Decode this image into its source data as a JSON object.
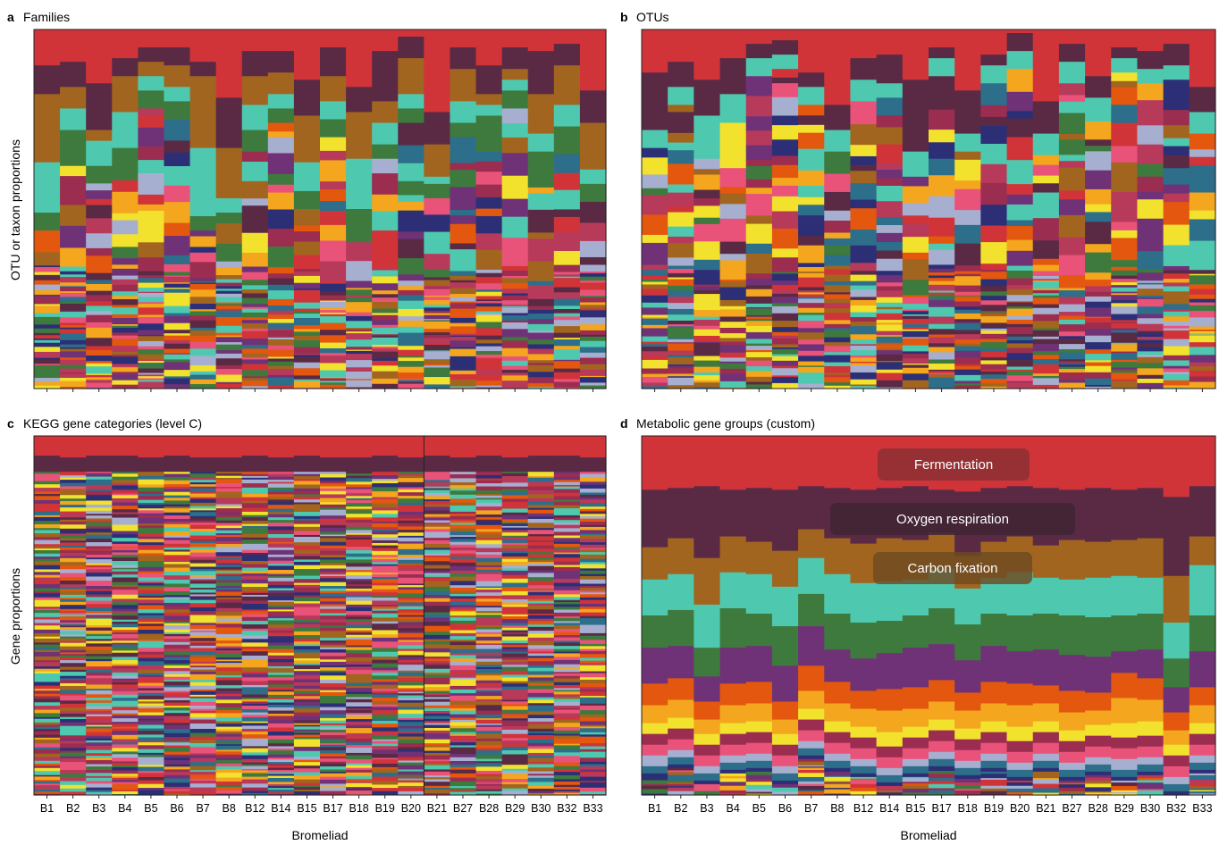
{
  "figure": {
    "y_label_top": "OTU or taxon proportions",
    "y_label_bottom": "Gene proportions",
    "x_label": "Bromeliad"
  },
  "palette": [
    "#d13438",
    "#5a2a45",
    "#a2651f",
    "#4ec9b0",
    "#3e7a3e",
    "#6f3277",
    "#f2e22e",
    "#f3a61e",
    "#e4570f",
    "#9b2d50",
    "#2d6e8a",
    "#e9537a",
    "#a7afd0",
    "#2c2f76",
    "#b83a5a"
  ],
  "chart_data": [
    {
      "panel": "a",
      "title": "Families",
      "type": "bar",
      "stacked": true,
      "normalized": true,
      "categories": [
        "B1",
        "B2",
        "B3",
        "B4",
        "B5",
        "B6",
        "B7",
        "B8",
        "B12",
        "B14",
        "B15",
        "B17",
        "B18",
        "B19",
        "B20",
        "B21",
        "B27",
        "B28",
        "B29",
        "B30",
        "B32",
        "B33"
      ],
      "ylim": [
        0,
        1
      ],
      "tick_labels_shown": false,
      "series_named": [
        {
          "color": "#d13438",
          "values": [
            0.1,
            0.09,
            0.15,
            0.08,
            0.05,
            0.05,
            0.09,
            0.19,
            0.06,
            0.06,
            0.14,
            0.05,
            0.16,
            0.06,
            0.02,
            0.23,
            0.05,
            0.1,
            0.05,
            0.06,
            0.04,
            0.17
          ]
        },
        {
          "color": "#5a2a45",
          "values": [
            0.08,
            0.07,
            0.13,
            0.05,
            0.04,
            0.05,
            0.04,
            0.14,
            0.07,
            0.06,
            0.1,
            0.08,
            0.07,
            0.14,
            0.06,
            0.09,
            0.06,
            0.08,
            0.06,
            0.12,
            0.06,
            0.09
          ]
        },
        {
          "color": "#a2651f",
          "values": [
            0.19,
            0.06,
            0.03,
            0.1,
            0.04,
            0.06,
            0.2,
            0.14,
            0.08,
            0.06,
            0.13,
            0.07,
            0.13,
            0.06,
            0.1,
            0.09,
            0.09,
            0.03,
            0.03,
            0.11,
            0.11,
            0.13
          ]
        },
        {
          "color": "#4ec9b0",
          "values": [
            0.14,
            0.06,
            0.07,
            0.1,
            0.04,
            0.04,
            0.19,
            0.04,
            0.07,
            0.04,
            0.08,
            0.05,
            0.14,
            0.06,
            0.04,
            0.02,
            0.06,
            0.03,
            0.03,
            0.05,
            0.06,
            0.04
          ]
        },
        {
          "color": "#3e7a3e",
          "values": [
            0.05,
            0.1,
            0.03,
            0.09,
            0.05,
            0.05,
            0.04,
            0.03,
            0.06,
            0.04,
            0.05,
            0.05,
            0.06,
            0.04,
            0.04,
            0.04,
            0.04,
            0.1,
            0.05,
            0.1,
            0.06,
            0.05
          ]
        }
      ],
      "remainder_note": "many additional minor families in thin colored bands to total 1.0"
    },
    {
      "panel": "b",
      "title": "OTUs",
      "type": "bar",
      "stacked": true,
      "normalized": true,
      "categories": [
        "B1",
        "B2",
        "B3",
        "B4",
        "B5",
        "B6",
        "B7",
        "B8",
        "B12",
        "B14",
        "B15",
        "B17",
        "B18",
        "B19",
        "B20",
        "B21",
        "B27",
        "B28",
        "B29",
        "B30",
        "B32",
        "B33"
      ],
      "ylim": [
        0,
        1
      ],
      "tick_labels_shown": false,
      "series_named": [
        {
          "color": "#d13438",
          "values": [
            0.12,
            0.09,
            0.14,
            0.08,
            0.04,
            0.03,
            0.12,
            0.21,
            0.08,
            0.07,
            0.14,
            0.05,
            0.17,
            0.07,
            0.01,
            0.2,
            0.04,
            0.13,
            0.05,
            0.06,
            0.04,
            0.16
          ]
        },
        {
          "color": "#5a2a45",
          "values": [
            0.16,
            0.07,
            0.1,
            0.1,
            0.04,
            0.04,
            0.04,
            0.07,
            0.06,
            0.08,
            0.2,
            0.03,
            0.12,
            0.03,
            0.05,
            0.09,
            0.05,
            0.06,
            0.03,
            0.05,
            0.06,
            0.07
          ]
        },
        {
          "color": "#4ec9b0",
          "values": [
            0.05,
            0.05,
            0.12,
            0.08,
            0.05,
            0.04,
            0.05,
            0.06,
            0.06,
            0.04,
            0.07,
            0.05,
            0.05,
            0.05,
            0.05,
            0.06,
            0.06,
            0.05,
            0.04,
            0.04,
            0.04,
            0.06
          ]
        }
      ],
      "remainder_note": "many additional minor OTUs in thin colored bands to total 1.0"
    },
    {
      "panel": "c",
      "title": "KEGG gene categories (level C)",
      "type": "bar",
      "stacked": true,
      "normalized": true,
      "categories": [
        "B1",
        "B2",
        "B3",
        "B4",
        "B5",
        "B6",
        "B7",
        "B8",
        "B12",
        "B14",
        "B15",
        "B17",
        "B18",
        "B19",
        "B20",
        "B21",
        "B27",
        "B28",
        "B29",
        "B30",
        "B32",
        "B33"
      ],
      "ylim": [
        0,
        1
      ],
      "series_named": [
        {
          "color": "#d13438",
          "values": [
            0.055,
            0.06,
            0.055,
            0.055,
            0.06,
            0.055,
            0.06,
            0.06,
            0.055,
            0.06,
            0.055,
            0.06,
            0.06,
            0.055,
            0.06,
            0.055,
            0.06,
            0.055,
            0.06,
            0.055,
            0.055,
            0.06
          ]
        },
        {
          "color": "#5a2a45",
          "values": [
            0.045,
            0.04,
            0.045,
            0.045,
            0.04,
            0.045,
            0.04,
            0.04,
            0.045,
            0.04,
            0.045,
            0.04,
            0.045,
            0.045,
            0.04,
            0.045,
            0.04,
            0.045,
            0.04,
            0.045,
            0.045,
            0.04
          ]
        }
      ],
      "remainder_note": "very many thin, nearly constant KEGG category bands to total 1.0"
    },
    {
      "panel": "d",
      "title": "Metabolic gene groups (custom)",
      "type": "bar",
      "stacked": true,
      "normalized": true,
      "categories": [
        "B1",
        "B2",
        "B3",
        "B4",
        "B5",
        "B6",
        "B7",
        "B8",
        "B12",
        "B14",
        "B15",
        "B17",
        "B18",
        "B19",
        "B20",
        "B21",
        "B27",
        "B28",
        "B29",
        "B30",
        "B32",
        "B33"
      ],
      "ylim": [
        0,
        1
      ],
      "annotations": [
        "Fermentation",
        "Oxygen respiration",
        "Carbon fixation"
      ],
      "series": [
        {
          "name": "Fermentation",
          "color": "#d13438",
          "values": [
            0.15,
            0.145,
            0.14,
            0.15,
            0.145,
            0.15,
            0.14,
            0.145,
            0.15,
            0.145,
            0.14,
            0.15,
            0.155,
            0.145,
            0.14,
            0.145,
            0.15,
            0.145,
            0.15,
            0.145,
            0.17,
            0.14
          ]
        },
        {
          "name": "Oxygen respiration",
          "color": "#5a2a45",
          "values": [
            0.16,
            0.14,
            0.2,
            0.13,
            0.15,
            0.17,
            0.12,
            0.14,
            0.15,
            0.14,
            0.15,
            0.12,
            0.18,
            0.15,
            0.14,
            0.16,
            0.14,
            0.15,
            0.14,
            0.14,
            0.22,
            0.14
          ]
        },
        {
          "name": "Carbon fixation",
          "color": "#a2651f",
          "values": [
            0.09,
            0.1,
            0.13,
            0.1,
            0.09,
            0.1,
            0.08,
            0.1,
            0.11,
            0.12,
            0.11,
            0.1,
            0.09,
            0.1,
            0.1,
            0.09,
            0.11,
            0.1,
            0.1,
            0.11,
            0.13,
            0.08
          ]
        },
        {
          "color": "#4ec9b0",
          "values": [
            0.1,
            0.1,
            0.12,
            0.1,
            0.11,
            0.11,
            0.1,
            0.11,
            0.11,
            0.11,
            0.1,
            0.11,
            0.1,
            0.1,
            0.12,
            0.1,
            0.1,
            0.11,
            0.11,
            0.1,
            0.1,
            0.14
          ]
        },
        {
          "color": "#3e7a3e",
          "values": [
            0.09,
            0.1,
            0.08,
            0.11,
            0.09,
            0.11,
            0.09,
            0.1,
            0.1,
            0.09,
            0.09,
            0.1,
            0.1,
            0.09,
            0.1,
            0.1,
            0.11,
            0.11,
            0.1,
            0.1,
            0.08,
            0.1
          ]
        },
        {
          "color": "#6f3277",
          "values": [
            0.1,
            0.09,
            0.07,
            0.1,
            0.1,
            0.1,
            0.11,
            0.09,
            0.09,
            0.1,
            0.11,
            0.1,
            0.09,
            0.1,
            0.09,
            0.1,
            0.1,
            0.1,
            0.06,
            0.08,
            0.07,
            0.1
          ]
        },
        {
          "color": "#e4570f",
          "values": [
            0.06,
            0.06,
            0.05,
            0.06,
            0.06,
            0.05,
            0.07,
            0.06,
            0.05,
            0.06,
            0.06,
            0.06,
            0.05,
            0.06,
            0.06,
            0.05,
            0.06,
            0.05,
            0.07,
            0.06,
            0.05,
            0.05
          ]
        },
        {
          "color": "#f3a61e",
          "values": [
            0.05,
            0.05,
            0.04,
            0.05,
            0.05,
            0.04,
            0.05,
            0.05,
            0.05,
            0.06,
            0.05,
            0.05,
            0.05,
            0.05,
            0.06,
            0.05,
            0.05,
            0.04,
            0.07,
            0.06,
            0.04,
            0.05
          ]
        },
        {
          "color": "#f2e22e",
          "values": [
            0.03,
            0.03,
            0.03,
            0.03,
            0.03,
            0.03,
            0.03,
            0.03,
            0.03,
            0.04,
            0.03,
            0.03,
            0.03,
            0.03,
            0.04,
            0.03,
            0.03,
            0.03,
            0.04,
            0.04,
            0.03,
            0.03
          ]
        },
        {
          "color": "#9b2d50",
          "values": [
            0.03,
            0.03,
            0.03,
            0.03,
            0.03,
            0.03,
            0.03,
            0.03,
            0.03,
            0.03,
            0.03,
            0.03,
            0.03,
            0.03,
            0.03,
            0.03,
            0.03,
            0.03,
            0.03,
            0.03,
            0.03,
            0.03
          ]
        },
        {
          "color": "#e9537a",
          "values": [
            0.03,
            0.03,
            0.03,
            0.03,
            0.03,
            0.03,
            0.03,
            0.03,
            0.03,
            0.03,
            0.03,
            0.03,
            0.03,
            0.03,
            0.03,
            0.03,
            0.03,
            0.03,
            0.03,
            0.03,
            0.03,
            0.03
          ]
        },
        {
          "color": "#a7afd0",
          "values": [
            0.03,
            0.02,
            0.02,
            0.02,
            0.02,
            0.02,
            0.02,
            0.02,
            0.02,
            0.02,
            0.02,
            0.02,
            0.02,
            0.02,
            0.02,
            0.02,
            0.02,
            0.02,
            0.03,
            0.02,
            0.02,
            0.02
          ]
        },
        {
          "color": "#2d6e8a",
          "values": [
            0.02,
            0.02,
            0.02,
            0.02,
            0.02,
            0.02,
            0.02,
            0.02,
            0.02,
            0.02,
            0.02,
            0.02,
            0.02,
            0.02,
            0.02,
            0.02,
            0.02,
            0.02,
            0.02,
            0.02,
            0.02,
            0.02
          ]
        },
        {
          "color": "#2c2f76",
          "values": [
            0.01,
            0.01,
            0.01,
            0.01,
            0.01,
            0.01,
            0.01,
            0.01,
            0.01,
            0.01,
            0.01,
            0.01,
            0.01,
            0.01,
            0.01,
            0.01,
            0.01,
            0.01,
            0.01,
            0.01,
            0.01,
            0.01
          ]
        }
      ],
      "remainder_note": "remaining fraction shown as thin bands"
    }
  ]
}
